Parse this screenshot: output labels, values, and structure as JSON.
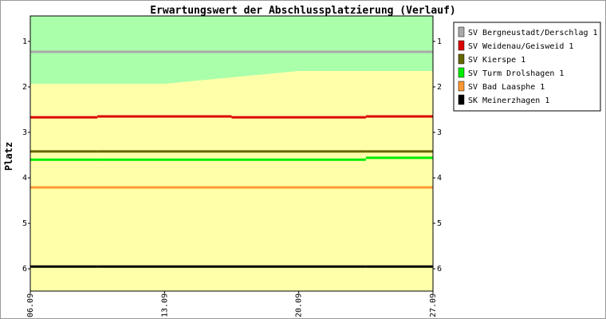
{
  "chart_data": {
    "type": "line",
    "step": true,
    "title": "Erwartungswert der Abschlussplatzierung (Verlauf)",
    "y_label": "Platz",
    "inverted_y": true,
    "xlim": [
      0,
      21
    ],
    "xticks": [
      {
        "value": 0,
        "label": "06.09"
      },
      {
        "value": 7,
        "label": "13.09"
      },
      {
        "value": 14,
        "label": "20.09"
      },
      {
        "value": 21,
        "label": "27.09"
      }
    ],
    "ylim": [
      0.44,
      6.49
    ],
    "yticks": [
      1,
      2,
      3,
      4,
      5,
      6
    ],
    "x": [
      0,
      3.5,
      10.5,
      17.5
    ],
    "zone": {
      "x": [
        0,
        7,
        14,
        21
      ],
      "values": [
        1.93,
        1.93,
        1.65,
        1.65
      ],
      "upper_color": "#aaffaa",
      "lower_color": "#ffffaa"
    },
    "series": [
      {
        "name": "SV Bergneustadt/Derschlag 1",
        "color": "#aaaaaa",
        "values": [
          1.23,
          1.23,
          1.23,
          1.23
        ]
      },
      {
        "name": "SV Weidenau/Geisweid 1",
        "color": "#dd0000",
        "values": [
          2.67,
          2.65,
          2.67,
          2.65
        ]
      },
      {
        "name": "SV Kierspe 1",
        "color": "#666600",
        "values": [
          3.42,
          3.42,
          3.42,
          3.42
        ]
      },
      {
        "name": "SV Turm Drolshagen 1",
        "color": "#00ee00",
        "values": [
          3.6,
          3.6,
          3.6,
          3.56
        ]
      },
      {
        "name": "SV Bad Laasphe 1",
        "color": "#ff9933",
        "values": [
          4.21,
          4.21,
          4.21,
          4.21
        ]
      },
      {
        "name": "SK Meinerzhagen 1",
        "color": "#000000",
        "values": [
          5.95,
          5.95,
          5.95,
          5.95
        ]
      }
    ]
  }
}
